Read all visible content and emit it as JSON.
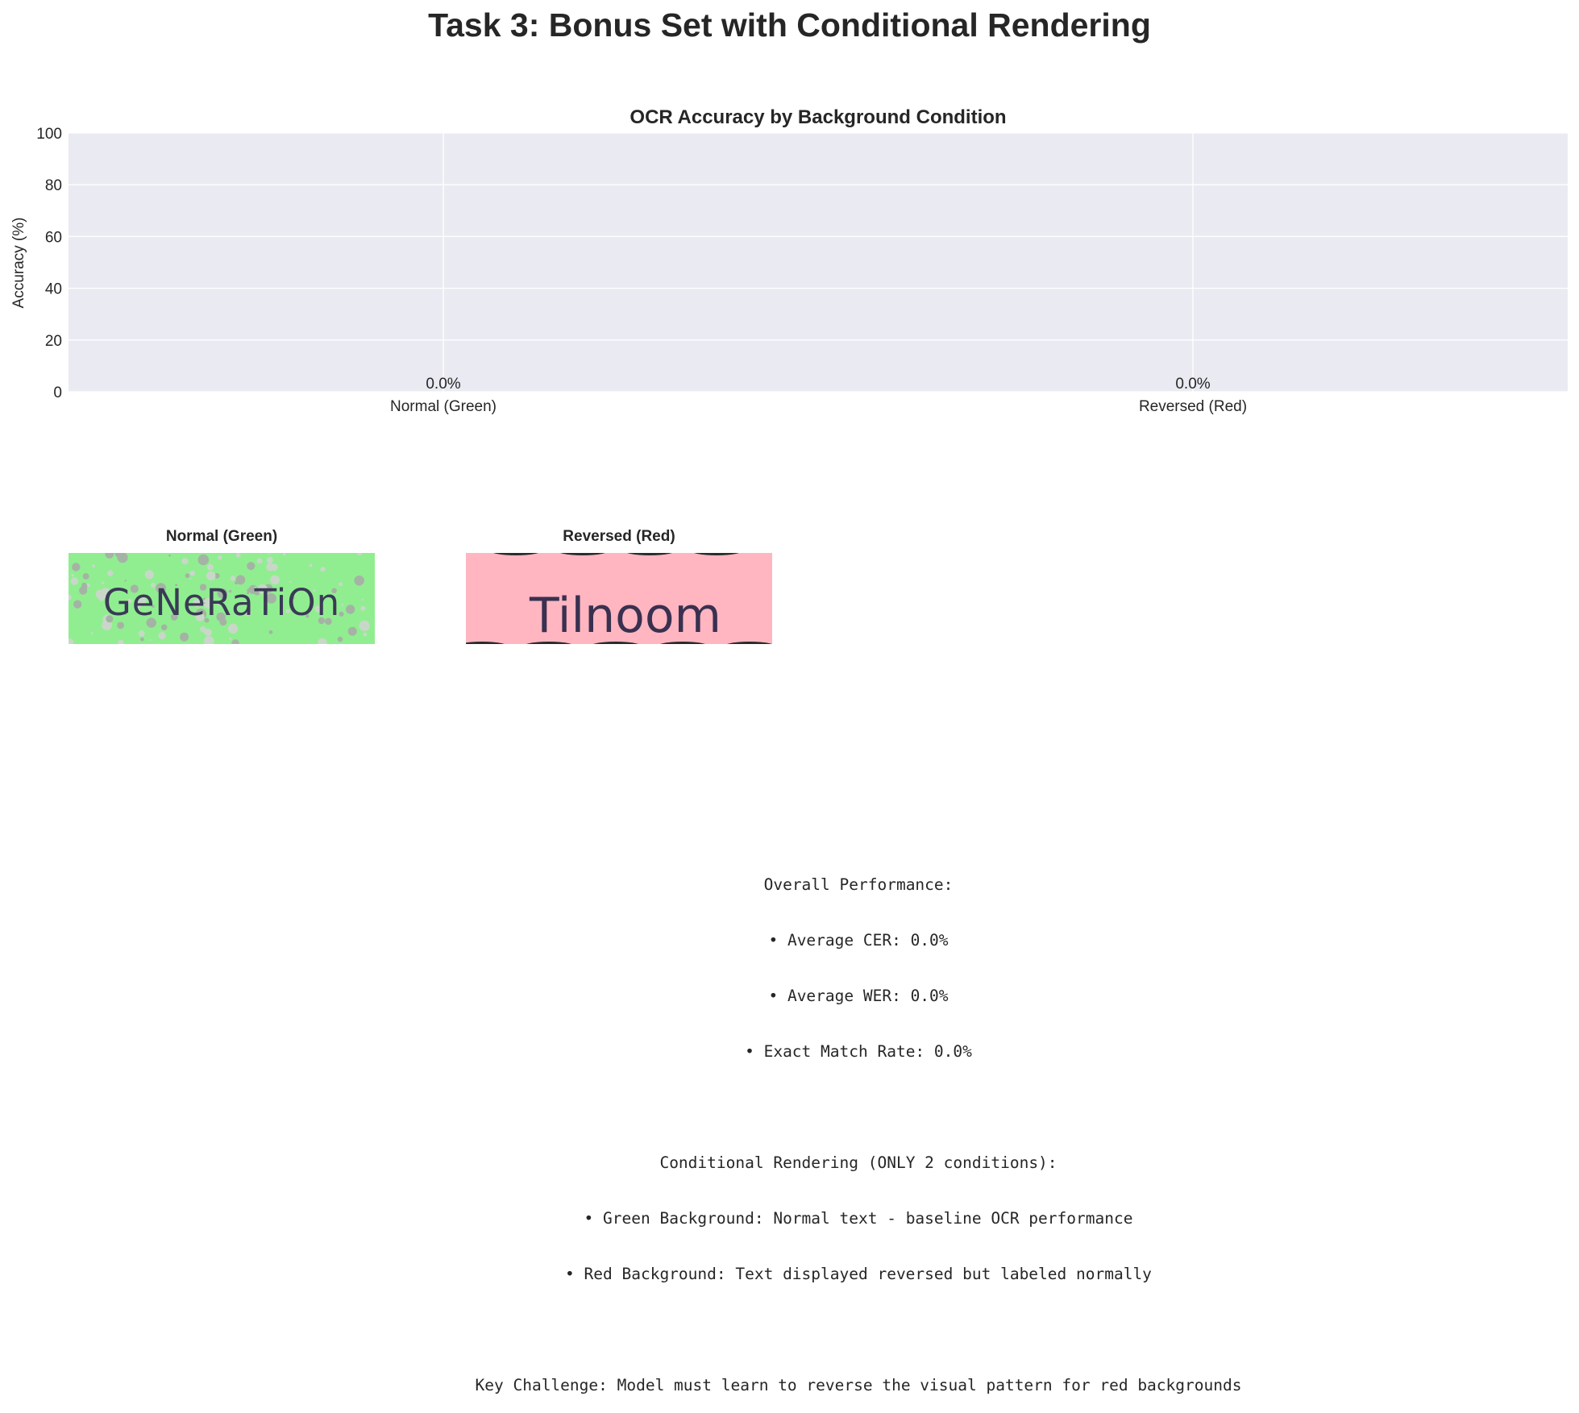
{
  "figure": {
    "title": "Task 3: Bonus Set with Conditional Rendering"
  },
  "chart_data": {
    "type": "bar",
    "title": "OCR Accuracy by Background Condition",
    "xlabel": "",
    "ylabel": "Accuracy (%)",
    "categories": [
      "Normal (Green)",
      "Reversed (Red)"
    ],
    "values": [
      0.0,
      0.0
    ],
    "value_labels": [
      "0.0%",
      "0.0%"
    ],
    "ylim": [
      0,
      100
    ],
    "yticks": [
      0,
      20,
      40,
      60,
      80,
      100
    ],
    "grid": true,
    "colors": {
      "background": "#eaeaf2",
      "grid": "#ffffff"
    }
  },
  "samples": [
    {
      "title": "Normal (Green)",
      "text": "GeNeRaTiOn",
      "background": "#90ee90"
    },
    {
      "title": "Reversed (Red)",
      "text": "Tilnoom",
      "background": "#ffb6c1"
    }
  ],
  "summary": {
    "lines": [
      "Overall Performance:",
      "• Average CER: 0.0%",
      "• Average WER: 0.0%",
      "• Exact Match Rate: 0.0%",
      "",
      "Conditional Rendering (ONLY 2 conditions):",
      "• Green Background: Normal text - baseline OCR performance",
      "• Red Background: Text displayed reversed but labeled normally",
      "",
      "Key Challenge: Model must learn to reverse the visual pattern for red backgrounds"
    ]
  }
}
